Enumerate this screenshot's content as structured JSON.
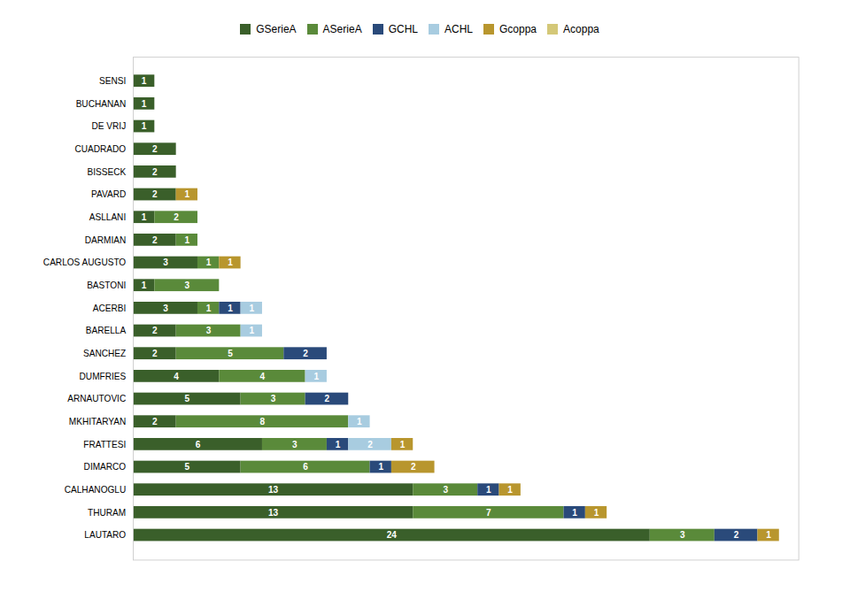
{
  "chart_data": {
    "type": "bar",
    "orientation": "horizontal",
    "stacked": true,
    "data_labels": true,
    "legend": "top",
    "tick_labels": "y",
    "categories": [
      "SENSI",
      "BUCHANAN",
      "DE VRIJ",
      "CUADRADO",
      "BISSECK",
      "PAVARD",
      "ASLLANI",
      "DARMIAN",
      "CARLOS AUGUSTO",
      "BASTONI",
      "ACERBI",
      "BARELLA",
      "SANCHEZ",
      "DUMFRIES",
      "ARNAUTOVIC",
      "MKHITARYAN",
      "FRATTESI",
      "DIMARCO",
      "CALHANOGLU",
      "THURAM",
      "LAUTARO"
    ],
    "xlim": [
      0,
      30.9
    ],
    "series": [
      {
        "name": "GSerieA",
        "color": "#3a5f2a",
        "values": [
          1,
          1,
          1,
          2,
          2,
          2,
          1,
          2,
          3,
          1,
          3,
          2,
          2,
          4,
          5,
          2,
          6,
          5,
          13,
          13,
          24
        ]
      },
      {
        "name": "ASerieA",
        "color": "#5a8a3a",
        "values": [
          0,
          0,
          0,
          0,
          0,
          0,
          2,
          1,
          1,
          3,
          1,
          3,
          5,
          4,
          3,
          8,
          3,
          6,
          3,
          7,
          3
        ]
      },
      {
        "name": "GCHL",
        "color": "#2a4a7a",
        "values": [
          0,
          0,
          0,
          0,
          0,
          0,
          0,
          0,
          0,
          0,
          1,
          0,
          2,
          0,
          2,
          0,
          1,
          1,
          1,
          1,
          2
        ]
      },
      {
        "name": "ACHL",
        "color": "#a8cce0",
        "values": [
          0,
          0,
          0,
          0,
          0,
          0,
          0,
          0,
          0,
          0,
          1,
          1,
          0,
          1,
          0,
          1,
          2,
          0,
          0,
          0,
          0
        ]
      },
      {
        "name": "Gcoppa",
        "color": "#b8962e",
        "values": [
          0,
          0,
          0,
          0,
          0,
          1,
          0,
          0,
          1,
          0,
          0,
          0,
          0,
          0,
          0,
          0,
          1,
          2,
          1,
          1,
          1
        ]
      },
      {
        "name": "Acoppa",
        "color": "#d4c878",
        "values": [
          0,
          0,
          0,
          0,
          0,
          0,
          0,
          0,
          0,
          0,
          0,
          0,
          0,
          0,
          0,
          0,
          0,
          0,
          0,
          0,
          0
        ]
      }
    ]
  }
}
